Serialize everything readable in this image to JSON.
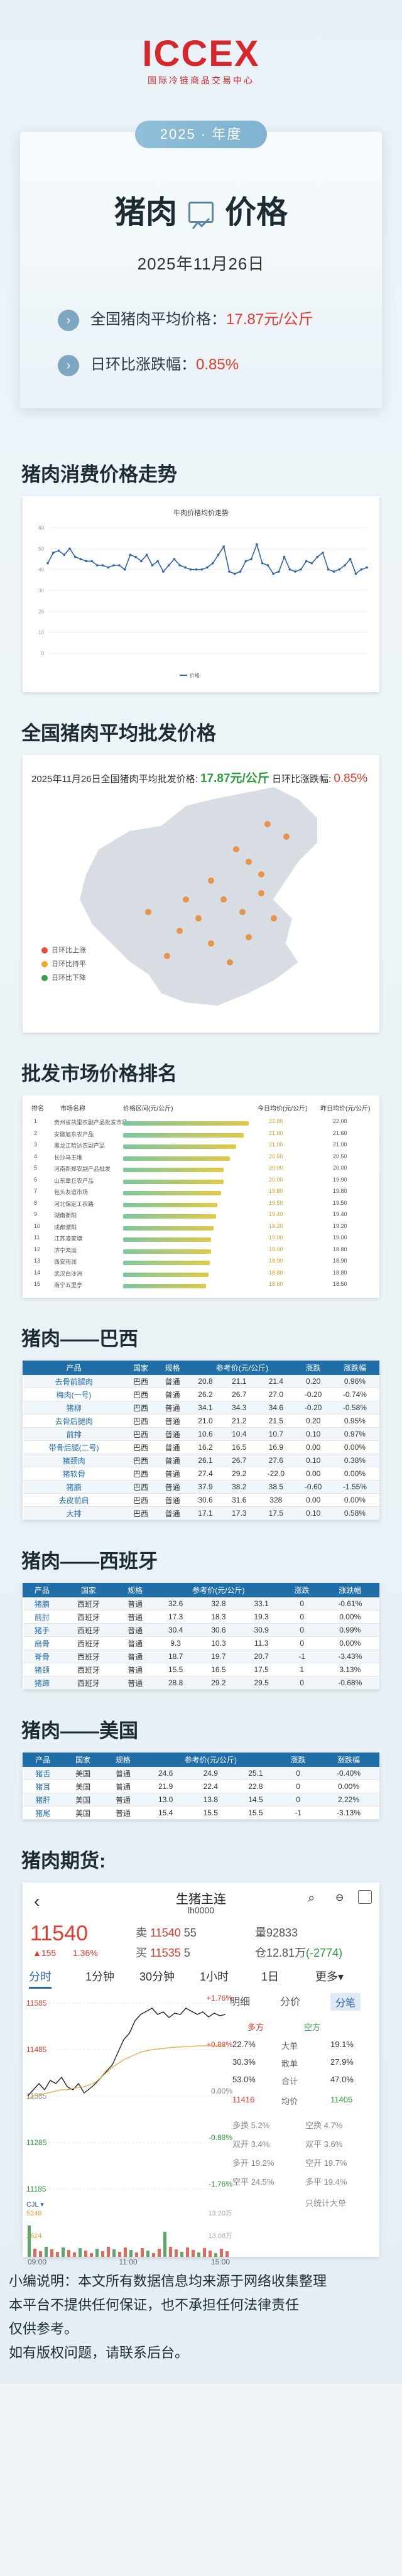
{
  "logo": {
    "mark": "ICCEX",
    "sub": "国际冷链商品交易中心"
  },
  "hero": {
    "year": "2025 · 年度",
    "title_left": "猪肉",
    "title_right": "价格",
    "date": "2025年11月26日",
    "avg_label": "全国猪肉平均价格：",
    "avg_value": "17.87元/公斤",
    "change_label": "日环比涨跌幅：",
    "change_value": "0.85%",
    "arrow": "›"
  },
  "sections": {
    "trend": "猪肉消费价格走势",
    "wholesale": "全国猪肉平均批发价格",
    "ranking": "批发市场价格排名",
    "brazil": "猪肉——巴西",
    "spain": "猪肉——西班牙",
    "usa": "猪肉——美国",
    "futures": "猪肉期货:"
  },
  "chart_data": {
    "type": "line",
    "title": "牛肉价格均价走势",
    "series": [
      {
        "name": "价格",
        "values": [
          43,
          48,
          49,
          47,
          50,
          46,
          45,
          44,
          44,
          42,
          42,
          41,
          42,
          42,
          40,
          47,
          46,
          44,
          47,
          42,
          44,
          39,
          42,
          45,
          42,
          41,
          40,
          40,
          40,
          41,
          43,
          47,
          51,
          39,
          38,
          39,
          44,
          45,
          52,
          43,
          42,
          38,
          39,
          46,
          40,
          39,
          40,
          44,
          43,
          46,
          48,
          40,
          39,
          40,
          42,
          45,
          38,
          40,
          41
        ]
      }
    ],
    "ylim": [
      0,
      60
    ]
  },
  "wholesale": {
    "head": "2025年11月26日全国猪肉平均批发价格:",
    "price": "17.87元/公斤",
    "change_label": "日环比涨跌幅:",
    "change": "0.85%",
    "legend": [
      "日环比上涨",
      "日环比持平",
      "日环比下降"
    ],
    "legend_colors": [
      "#e84c3d",
      "#f0a830",
      "#3aa14a"
    ]
  },
  "ranking": {
    "headers": [
      "排名",
      "市场名称",
      "价格区间(元/公斤)",
      "今日均价(元/公斤)",
      "昨日均价(元/公斤)"
    ],
    "rows": [
      {
        "rank": "1",
        "name": "贵州省凯里农副产品批发市场",
        "price": "22.00",
        "prev": "22.00"
      },
      {
        "rank": "2",
        "name": "安徽旭东农产品",
        "price": "21.60",
        "prev": "21.60"
      },
      {
        "rank": "3",
        "name": "黑龙江哈达农副产品",
        "price": "21.00",
        "prev": "21.00"
      },
      {
        "rank": "4",
        "name": "长沙马王堆",
        "price": "20.50",
        "prev": "20.50"
      },
      {
        "rank": "5",
        "name": "河南新郑农副产品批发",
        "price": "20.00",
        "prev": "20.00"
      },
      {
        "rank": "6",
        "name": "山东章丘农产品",
        "price": "20.00",
        "prev": "19.90"
      },
      {
        "rank": "7",
        "name": "包头友谊市场",
        "price": "19.80",
        "prev": "19.80"
      },
      {
        "rank": "8",
        "name": "河北保定工农路",
        "price": "19.50",
        "prev": "19.50"
      },
      {
        "rank": "9",
        "name": "湖南衡阳",
        "price": "19.40",
        "prev": "19.40"
      },
      {
        "rank": "10",
        "name": "成都濛阳",
        "price": "19.20",
        "prev": "19.20"
      },
      {
        "rank": "11",
        "name": "江苏凌家塘",
        "price": "19.00",
        "prev": "19.00"
      },
      {
        "rank": "12",
        "name": "济宁鸿运",
        "price": "19.00",
        "prev": "18.80"
      },
      {
        "rank": "13",
        "name": "西安雨润",
        "price": "18.90",
        "prev": "18.90"
      },
      {
        "rank": "14",
        "name": "武汉白沙洲",
        "price": "18.80",
        "prev": "18.80"
      },
      {
        "rank": "15",
        "name": "南宁五里亭",
        "price": "18.60",
        "prev": "18.50"
      }
    ]
  },
  "brazil": {
    "headers": [
      "产品",
      "国家",
      "规格",
      "参考价(元/公斤)",
      "",
      "",
      "涨跌",
      "涨跌幅"
    ],
    "rows": [
      [
        "去骨前腿肉",
        "巴西",
        "普通",
        "20.8",
        "21.1",
        "21.4",
        "0.20",
        "0.96%"
      ],
      [
        "梅肉(一号)",
        "巴西",
        "普通",
        "26.2",
        "26.7",
        "27.0",
        "-0.20",
        "-0.74%"
      ],
      [
        "猪柳",
        "巴西",
        "普通",
        "34.1",
        "34.3",
        "34.6",
        "-0.20",
        "-0.58%"
      ],
      [
        "去骨后腿肉",
        "巴西",
        "普通",
        "21.0",
        "21.2",
        "21.5",
        "0.20",
        "0.95%"
      ],
      [
        "前排",
        "巴西",
        "普通",
        "10.6",
        "10.4",
        "10.7",
        "0.10",
        "0.97%"
      ],
      [
        "带骨后腿(二号)",
        "巴西",
        "普通",
        "16.2",
        "16.5",
        "16.9",
        "0.00",
        "0.00%"
      ],
      [
        "猪颈肉",
        "巴西",
        "普通",
        "26.1",
        "26.7",
        "27.6",
        "0.10",
        "0.38%"
      ],
      [
        "猪软骨",
        "巴西",
        "普通",
        "27.4",
        "29.2",
        "-22.0",
        "0.00",
        "0.00%"
      ],
      [
        "猪腩",
        "巴西",
        "普通",
        "37.9",
        "38.2",
        "38.5",
        "-0.60",
        "-1.55%"
      ],
      [
        "去皮前肩",
        "巴西",
        "普通",
        "30.6",
        "31.6",
        "328",
        "0.00",
        "0.00%"
      ],
      [
        "大排",
        "巴西",
        "普通",
        "17.1",
        "17.3",
        "17.5",
        "0.10",
        "0.58%"
      ]
    ]
  },
  "spain": {
    "headers": [
      "产品",
      "国家",
      "规格",
      "参考价(元/公斤)",
      "",
      "",
      "涨跌",
      "涨跌幅"
    ],
    "rows": [
      [
        "猪腩",
        "西班牙",
        "普通",
        "32.6",
        "32.8",
        "33.1",
        "0",
        "-0.61%"
      ],
      [
        "前肘",
        "西班牙",
        "普通",
        "17.3",
        "18.3",
        "19.3",
        "0",
        "0.00%"
      ],
      [
        "猪手",
        "西班牙",
        "普通",
        "30.4",
        "30.6",
        "30.9",
        "0",
        "0.99%"
      ],
      [
        "扇骨",
        "西班牙",
        "普通",
        "9.3",
        "10.3",
        "11.3",
        "0",
        "0.00%"
      ],
      [
        "脊骨",
        "西班牙",
        "普通",
        "18.7",
        "19.7",
        "20.7",
        "-1",
        "-3.43%"
      ],
      [
        "猪颈",
        "西班牙",
        "普通",
        "15.5",
        "16.5",
        "17.5",
        "1",
        "3.13%"
      ],
      [
        "猪蹄",
        "西班牙",
        "普通",
        "28.8",
        "29.2",
        "29.5",
        "0",
        "-0.68%"
      ]
    ]
  },
  "usa": {
    "headers": [
      "产品",
      "国家",
      "规格",
      "参考价(元/公斤)",
      "",
      "",
      "涨跌",
      "涨跌幅"
    ],
    "rows": [
      [
        "猪舌",
        "美国",
        "普通",
        "24.6",
        "24.9",
        "25.1",
        "0",
        "-0.40%"
      ],
      [
        "猪耳",
        "美国",
        "普通",
        "21.9",
        "22.4",
        "22.8",
        "0",
        "0.00%"
      ],
      [
        "猪肝",
        "美国",
        "普通",
        "13.0",
        "13.8",
        "14.5",
        "0",
        "2.22%"
      ],
      [
        "猪尾",
        "美国",
        "普通",
        "15.4",
        "15.5",
        "15.5",
        "-1",
        "-3.13%"
      ]
    ]
  },
  "futures": {
    "back": "‹",
    "title": "生猪主连",
    "code": "lh0000",
    "price": "11540",
    "up": "▲155",
    "pct": "1.36%",
    "sell_label": "卖",
    "sell": "11540",
    "sell_qty": "55",
    "buy_label": "买",
    "buy": "11535",
    "buy_qty": "5",
    "vol_label": "量",
    "vol": "92833",
    "oi_label": "仓",
    "oi": "12.81万",
    "oi_chg": "(-2774)",
    "tabs": [
      "分时",
      "1分钟",
      "30分钟",
      "1小时",
      "1日",
      "更多▾"
    ],
    "right_tabs": [
      "明细",
      "分价",
      "分笔"
    ],
    "y_labels": [
      "11585",
      "11485",
      "11385",
      "11285",
      "11185"
    ],
    "pct_labels": [
      "+1.76%",
      "+0.88%",
      "0.00%",
      "-0.88%",
      "-1.76%"
    ],
    "ops": [
      "22.7%",
      "大单",
      "19.1%",
      "30.3%",
      "散单",
      "27.9%",
      "53.0%",
      "合计",
      "47.0%"
    ],
    "long": "多方",
    "short": "空方",
    "avg_left": "11416",
    "avg_label": "均价",
    "avg_right": "11405",
    "stats": [
      "多换 5.2%",
      "空换 4.7%",
      "双开 3.4%",
      "双平 3.6%",
      "多开 19.2%",
      "空开 19.7%",
      "空平 24.5%",
      "多平 19.4%"
    ],
    "cje": "CJL ▾",
    "cje_val": "5248",
    "val2": "2624",
    "val3": "13.20万",
    "val4": "13.08万",
    "times": [
      "09:00",
      "11:00",
      "15:00"
    ],
    "only_this": "只统计大单"
  },
  "footer": [
    "小编说明：本文所有数据信息均来源于网络收集整理",
    "本平台不提供任何保证，也不承担任何法律责任",
    "仅供参考。",
    "如有版权问题，请联系后台。"
  ]
}
